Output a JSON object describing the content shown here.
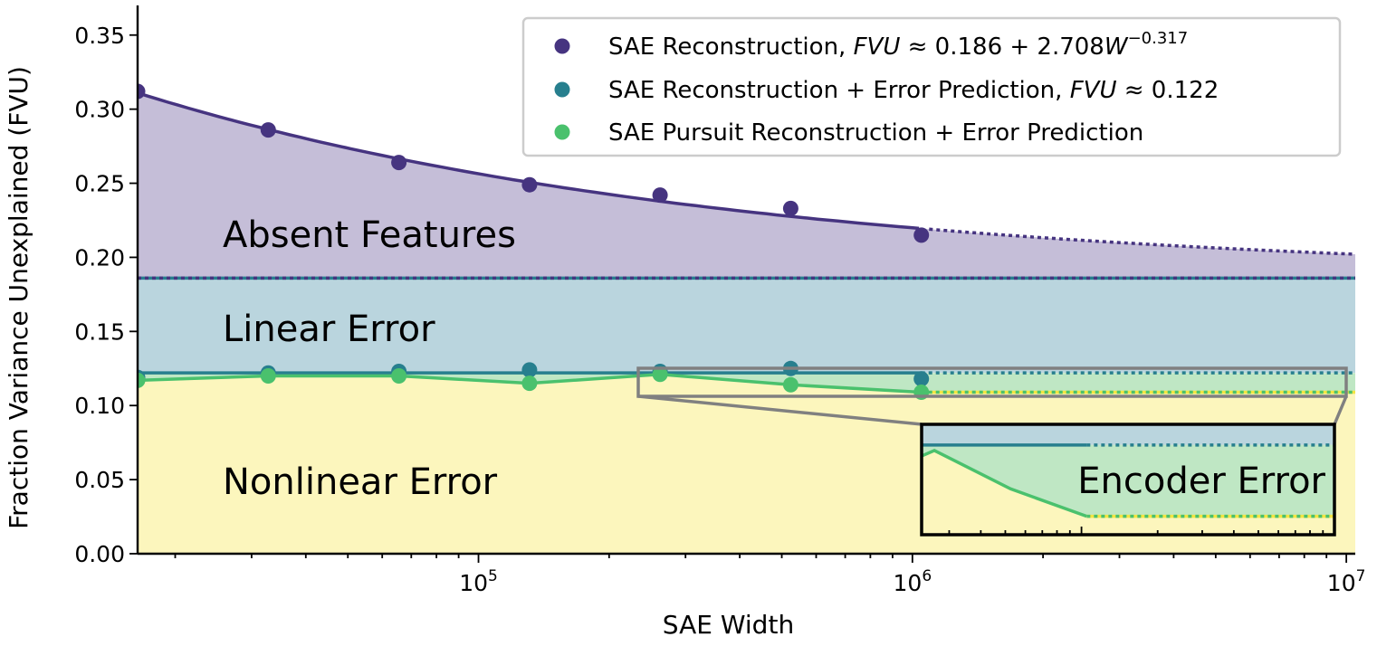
{
  "chart_data": {
    "type": "line",
    "xscale": "log",
    "xlim": [
      16384,
      10485760
    ],
    "ylim": [
      0,
      0.37
    ],
    "xlabel": "SAE Width",
    "ylabel": "Fraction Variance Unexplained (FVU)",
    "x_ticks": [
      {
        "value": 100000,
        "base": "10",
        "exp": "5"
      },
      {
        "value": 1000000,
        "base": "10",
        "exp": "6"
      },
      {
        "value": 10000000,
        "base": "10",
        "exp": "7"
      }
    ],
    "y_ticks": [
      "0.00",
      "0.05",
      "0.10",
      "0.15",
      "0.20",
      "0.25",
      "0.30",
      "0.35"
    ],
    "x": [
      16384,
      32768,
      65536,
      131072,
      262144,
      524288,
      1048576
    ],
    "series": [
      {
        "name": "SAE Reconstruction",
        "legend_formula": "FVU ≈ 0.186 + 2.708W",
        "legend_formula_prefix": "FVU",
        "legend_formula_rest": " ≈ 0.186 + 2.708",
        "legend_formula_var": "W",
        "legend_exponent": "−0.317",
        "color": "#463480",
        "values": [
          0.312,
          0.286,
          0.264,
          0.249,
          0.242,
          0.233,
          0.215
        ],
        "fit": {
          "a": 0.186,
          "b": 2.708,
          "exponent": -0.317
        }
      },
      {
        "name": "SAE Reconstruction + Error Prediction",
        "legend_formula_prefix": "FVU",
        "legend_formula_rest": " ≈ 0.122",
        "color": "#277F8E",
        "values": [
          0.119,
          0.122,
          0.123,
          0.124,
          0.123,
          0.125,
          0.118
        ],
        "constant": 0.122
      },
      {
        "name": "SAE Pursuit Reconstruction + Error Prediction",
        "color": "#4AC16D",
        "values": [
          0.117,
          0.12,
          0.12,
          0.115,
          0.121,
          0.114,
          0.109
        ]
      }
    ],
    "regions": [
      {
        "label": "Absent Features",
        "color": "#c5bed8"
      },
      {
        "label": "Linear Error",
        "color": "#bad5de"
      },
      {
        "label": "Nonlinear Error",
        "color": "#fcf6bd"
      },
      {
        "label": "Encoder Error",
        "color": "#bfe7c4"
      }
    ],
    "legend_position": "top-right",
    "grid": false
  }
}
